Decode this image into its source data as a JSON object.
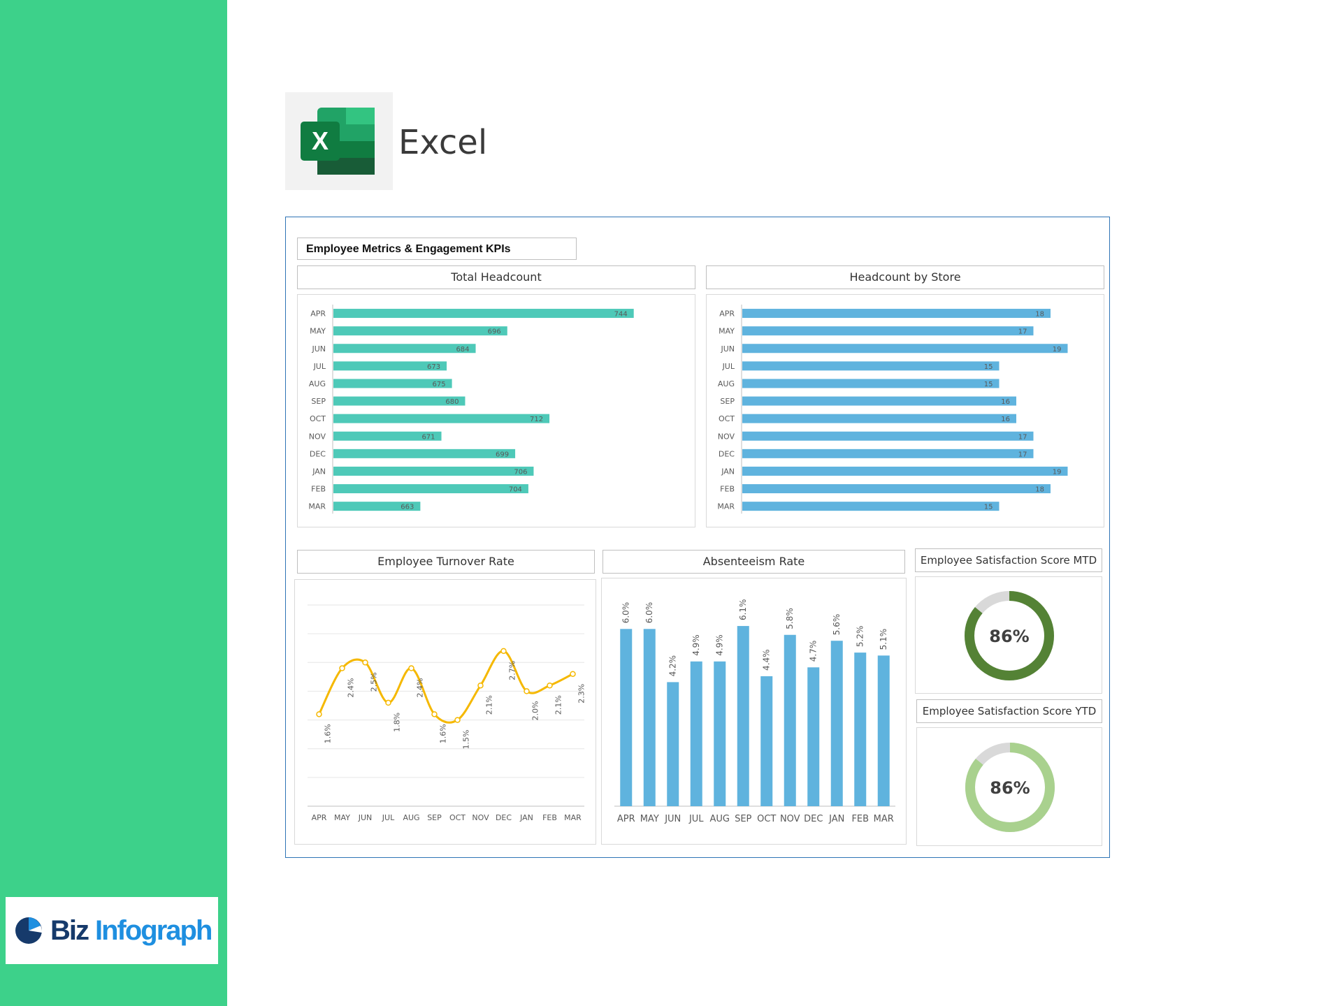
{
  "app": {
    "name": "Excel",
    "logo_icon": "excel-logo-icon"
  },
  "brand": {
    "word1": "Biz",
    "word2": "Infograph",
    "icon": "pie-chart-icon"
  },
  "colors": {
    "sidebar": "#3dd18a",
    "teal_bar": "#4ec9b8",
    "blue_bar": "#5fb3de",
    "line": "#f5b800",
    "donut_mtd": "#548235",
    "donut_ytd": "#a9d18e",
    "donut_rest": "#d9d9d9"
  },
  "dashboard": {
    "title": "Employee Metrics & Engagement KPIs"
  },
  "chart_data": [
    {
      "id": "total_headcount",
      "type": "bar",
      "orientation": "horizontal",
      "title": "Total Headcount",
      "categories": [
        "APR",
        "MAY",
        "JUN",
        "JUL",
        "AUG",
        "SEP",
        "OCT",
        "NOV",
        "DEC",
        "JAN",
        "FEB",
        "MAR"
      ],
      "values": [
        744,
        696,
        684,
        673,
        675,
        680,
        712,
        671,
        699,
        706,
        704,
        663
      ],
      "xlim": [
        630,
        760
      ]
    },
    {
      "id": "headcount_by_store",
      "type": "bar",
      "orientation": "horizontal",
      "title": "Headcount by Store",
      "categories": [
        "APR",
        "MAY",
        "JUN",
        "JUL",
        "AUG",
        "SEP",
        "OCT",
        "NOV",
        "DEC",
        "JAN",
        "FEB",
        "MAR"
      ],
      "values": [
        18,
        17,
        19,
        15,
        15,
        16,
        16,
        17,
        17,
        19,
        18,
        15
      ],
      "xlim": [
        0,
        20
      ]
    },
    {
      "id": "turnover_rate",
      "type": "line",
      "title": "Employee Turnover Rate",
      "categories": [
        "APR",
        "MAY",
        "JUN",
        "JUL",
        "AUG",
        "SEP",
        "OCT",
        "NOV",
        "DEC",
        "JAN",
        "FEB",
        "MAR"
      ],
      "values": [
        1.6,
        2.4,
        2.5,
        1.8,
        2.4,
        1.6,
        1.5,
        2.1,
        2.7,
        2.0,
        2.1,
        2.3
      ],
      "labels": [
        "1.6%",
        "2.4%",
        "2.5%",
        "1.8%",
        "2.4%",
        "1.6%",
        "1.5%",
        "2.1%",
        "2.7%",
        "2.0%",
        "2.1%",
        "2.3%"
      ],
      "ylim": [
        0,
        3.5
      ],
      "grid": true
    },
    {
      "id": "absenteeism_rate",
      "type": "bar",
      "title": "Absenteeism Rate",
      "categories": [
        "APR",
        "MAY",
        "JUN",
        "JUL",
        "AUG",
        "SEP",
        "OCT",
        "NOV",
        "DEC",
        "JAN",
        "FEB",
        "MAR"
      ],
      "values": [
        6.0,
        6.0,
        4.2,
        4.9,
        4.9,
        6.1,
        4.4,
        5.8,
        4.7,
        5.6,
        5.2,
        5.1
      ],
      "labels": [
        "6.0%",
        "6.0%",
        "4.2%",
        "4.9%",
        "4.9%",
        "6.1%",
        "4.4%",
        "5.8%",
        "4.7%",
        "5.6%",
        "5.2%",
        "5.1%"
      ],
      "ylim": [
        0,
        7
      ]
    },
    {
      "id": "satisfaction_mtd",
      "type": "pie",
      "title": "Employee Satisfaction Score MTD",
      "value": 86,
      "label": "86%"
    },
    {
      "id": "satisfaction_ytd",
      "type": "pie",
      "title": "Employee Satisfaction Score YTD",
      "value": 86,
      "label": "86%"
    }
  ]
}
